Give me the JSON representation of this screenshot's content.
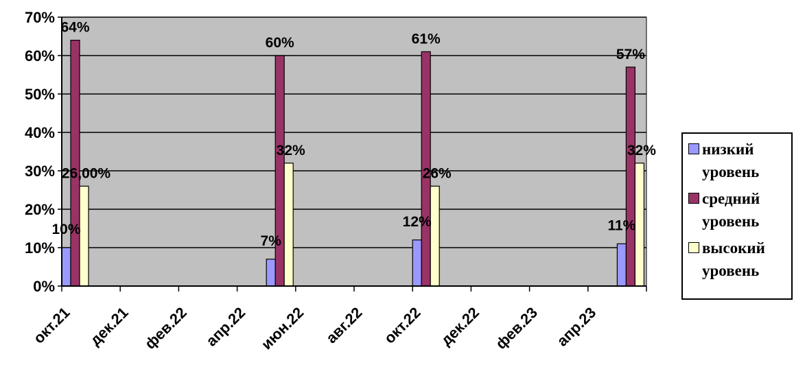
{
  "chart_data": {
    "type": "bar",
    "categories": [
      "окт.21",
      "дек.21",
      "фев.22",
      "апр.22",
      "июн.22",
      "авг.22",
      "окт.22",
      "дек.22",
      "фев.23",
      "апр.23"
    ],
    "groups": [
      {
        "position": 0.0,
        "values": [
          10,
          64,
          26
        ],
        "labels": [
          "10%",
          "64%",
          "26,00%"
        ]
      },
      {
        "position": 3.5,
        "values": [
          7,
          60,
          32
        ],
        "labels": [
          "7%",
          "60%",
          "32%"
        ]
      },
      {
        "position": 6.0,
        "values": [
          12,
          61,
          26
        ],
        "labels": [
          "12%",
          "61%",
          "26%"
        ]
      },
      {
        "position": 9.5,
        "values": [
          11,
          57,
          32
        ],
        "labels": [
          "11%",
          "57%",
          "32%"
        ]
      }
    ],
    "series": [
      {
        "name": "низкий уровень",
        "color": "#9999FF"
      },
      {
        "name": "средний уровень",
        "color": "#993366"
      },
      {
        "name": "высокий уровень",
        "color": "#FFFFCC"
      }
    ],
    "yticks": [
      "0%",
      "10%",
      "20%",
      "30%",
      "40%",
      "50%",
      "60%",
      "70%"
    ],
    "ylim": [
      0,
      70
    ],
    "grid": true,
    "plot_background": "#C0C0C0",
    "legend_position": "right"
  }
}
